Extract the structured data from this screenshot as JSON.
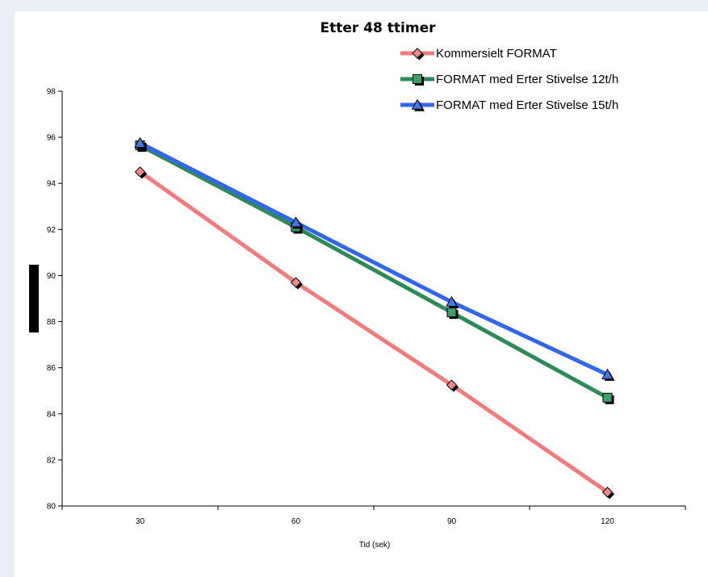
{
  "chart_data": {
    "type": "line",
    "title": "Etter 48 ttimer",
    "xlabel": "Tid (sek)",
    "ylabel": "",
    "x": [
      30,
      60,
      90,
      120
    ],
    "xlim": [
      15,
      135
    ],
    "ylim": [
      80,
      98
    ],
    "yticks": [
      80,
      82,
      84,
      86,
      88,
      90,
      92,
      94,
      96,
      98
    ],
    "grid": false,
    "legend_position": "top-right",
    "series": [
      {
        "name": "Kommersielt FORMAT",
        "values": [
          94.5,
          89.7,
          85.25,
          80.6
        ],
        "color": "#f47b7b",
        "marker": "diamond",
        "marker_fill": "#f08a8a"
      },
      {
        "name": "FORMAT med Erter Stivelse 12t/h",
        "values": [
          95.65,
          92.1,
          88.4,
          84.7
        ],
        "color": "#2e8b57",
        "marker": "square",
        "marker_fill": "#3ea066"
      },
      {
        "name": "FORMAT med Erter Stivelse 15t/h",
        "values": [
          95.75,
          92.3,
          88.85,
          85.7
        ],
        "color": "#3366ee",
        "marker": "triangle",
        "marker_fill": "#4477ee"
      }
    ]
  }
}
